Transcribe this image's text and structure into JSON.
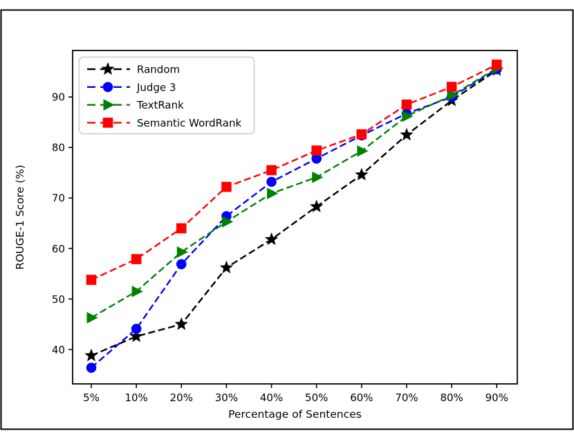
{
  "figure": {
    "border_color": "#000000",
    "background": "#ffffff"
  },
  "chart_data": {
    "type": "line",
    "title": "",
    "xlabel": "Percentage of Sentences",
    "ylabel": "ROUGE-1 Score (%)",
    "categories": [
      "5%",
      "10%",
      "20%",
      "30%",
      "40%",
      "50%",
      "60%",
      "70%",
      "80%",
      "90%"
    ],
    "y_ticks": [
      40,
      50,
      60,
      70,
      80,
      90
    ],
    "ylim": [
      33.2,
      99.2
    ],
    "grid": false,
    "line_style": "dashed",
    "legend_position": "upper-left",
    "series": [
      {
        "name": "Random",
        "color": "#000000",
        "marker": "star",
        "values": [
          38.8,
          42.6,
          45.0,
          56.2,
          61.8,
          68.3,
          74.6,
          82.5,
          89.3,
          95.3
        ]
      },
      {
        "name": "Judge 3",
        "color": "#0000ff",
        "marker": "circle",
        "values": [
          36.4,
          44.1,
          56.9,
          66.4,
          73.2,
          77.8,
          82.4,
          86.7,
          90.0,
          95.5
        ]
      },
      {
        "name": "TextRank",
        "color": "#008000",
        "marker": "triangle-right",
        "values": [
          46.3,
          51.5,
          59.3,
          65.3,
          70.9,
          74.1,
          79.3,
          86.2,
          90.3,
          95.7
        ]
      },
      {
        "name": "Semantic WordRank",
        "color": "#ff0000",
        "marker": "square",
        "values": [
          53.8,
          57.9,
          64.0,
          72.2,
          75.5,
          79.4,
          82.6,
          88.5,
          92.0,
          96.4
        ]
      }
    ]
  }
}
